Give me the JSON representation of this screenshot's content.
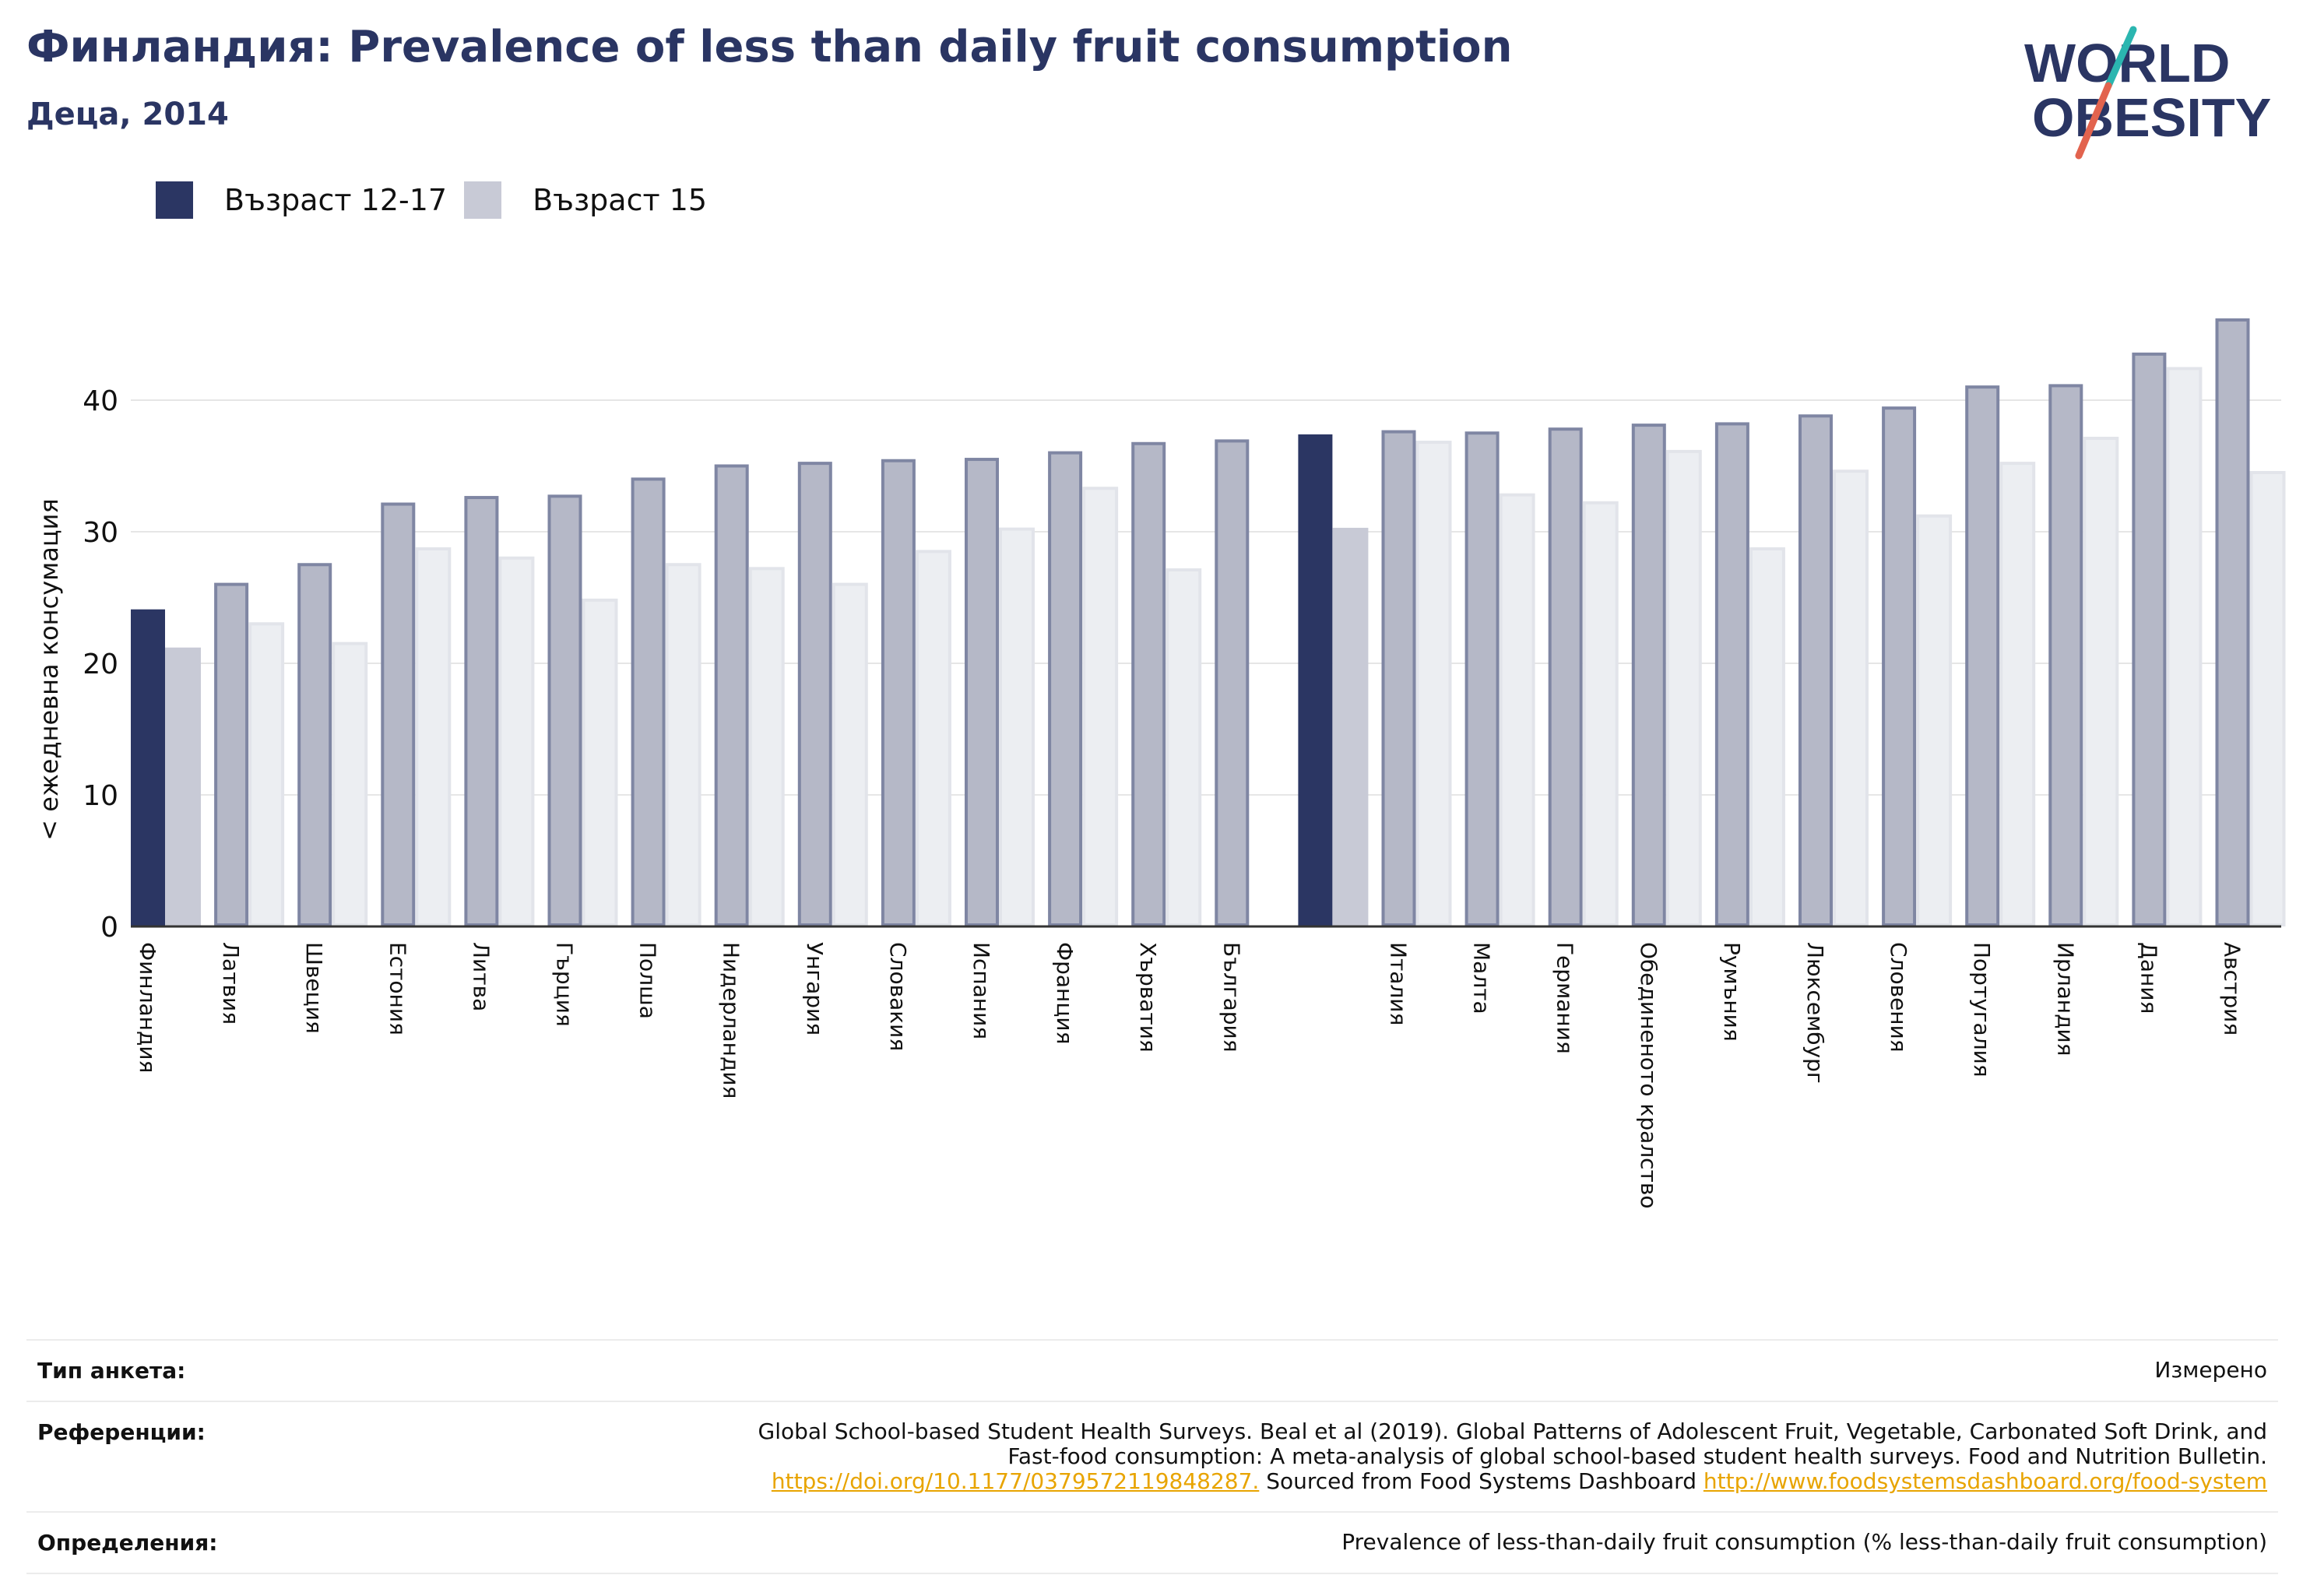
{
  "header": {
    "title": "Финландия: Prevalence of less than daily fruit consumption",
    "subtitle": "Деца, 2014",
    "logo_line1": "WORLD",
    "logo_line2": "OBESITY"
  },
  "colors": {
    "dark": "#2b3663",
    "light": "#c8cad6",
    "faded_dark": "#b5b8c7",
    "faded_light": "#eceef2",
    "logo_text": "#2a3563",
    "logo_slash_top": "#2bb6b0",
    "logo_slash_bottom": "#e2634e"
  },
  "legend": [
    {
      "label": "Възраст 12-17",
      "color": "#2b3663"
    },
    {
      "label": "Възраст 15",
      "color": "#c8cad6"
    }
  ],
  "chart_data": {
    "type": "bar",
    "title": "Финландия: Prevalence of less than daily fruit consumption",
    "subtitle": "Деца, 2014",
    "ylabel": "< ежедневна консумация",
    "ylim": [
      0,
      48
    ],
    "yticks": [
      0,
      10,
      20,
      30,
      40
    ],
    "grid": true,
    "legend_position": "top-left",
    "highlighted": [
      "Финландия"
    ],
    "groups": [
      {
        "categories": [
          "Финландия",
          "Латвия",
          "Швеция",
          "Естония",
          "Литва",
          "Гърция",
          "Полша",
          "Нидерландия",
          "Унгария",
          "Словакия",
          "Испания",
          "Франция",
          "Хърватия",
          "България"
        ]
      },
      {
        "categories": [
          "",
          "Италия",
          "Малта",
          "Германия",
          "Обединеното кралство",
          "Румъния",
          "Люксембург",
          "Словения",
          "Португалия",
          "Ирландия",
          "Дания",
          "Австрия"
        ]
      }
    ],
    "categories": [
      "Финландия",
      "Латвия",
      "Швеция",
      "Естония",
      "Литва",
      "Гърция",
      "Полша",
      "Нидерландия",
      "Унгария",
      "Словакия",
      "Испания",
      "Франция",
      "Хърватия",
      "България",
      "",
      "Италия",
      "Малта",
      "Германия",
      "Обединеното кралство",
      "Румъния",
      "Люксембург",
      "Словения",
      "Португалия",
      "Ирландия",
      "Дания",
      "Австрия"
    ],
    "series": [
      {
        "name": "Възраст 12-17",
        "values": [
          24.1,
          26.0,
          27.5,
          32.1,
          32.6,
          32.7,
          34.0,
          35.0,
          35.2,
          35.4,
          35.5,
          36.0,
          36.7,
          36.9,
          37.4,
          37.6,
          37.5,
          37.8,
          38.1,
          38.2,
          38.8,
          39.4,
          41.0,
          41.1,
          43.5,
          46.1
        ]
      },
      {
        "name": "Възраст 15",
        "values": [
          21.2,
          23.0,
          21.5,
          28.7,
          28.0,
          24.8,
          27.5,
          27.2,
          26.0,
          28.5,
          30.2,
          33.3,
          27.1,
          null,
          30.3,
          36.8,
          32.8,
          32.2,
          36.1,
          28.7,
          34.6,
          31.2,
          35.2,
          37.1,
          42.4,
          34.5
        ]
      }
    ]
  },
  "footer": {
    "survey_type_label": "Тип анкета:",
    "survey_type_value": "Измерено",
    "references_label": "Референции:",
    "references_line1": "Global School-based Student Health Surveys. Beal et al (2019). Global Patterns of Adolescent Fruit, Vegetable, Carbonated Soft Drink, and",
    "references_line2": "Fast-food consumption: A meta-analysis of global school-based student health surveys. Food and Nutrition Bulletin.",
    "references_link1": "https://doi.org/10.1177/0379572119848287.",
    "references_mid": " Sourced from Food Systems Dashboard ",
    "references_link2": "http://www.foodsystemsdashboard.org/food-system",
    "definitions_label": "Определения:",
    "definitions_value": "Prevalence of less-than-daily fruit consumption (% less-than-daily fruit consumption)"
  }
}
